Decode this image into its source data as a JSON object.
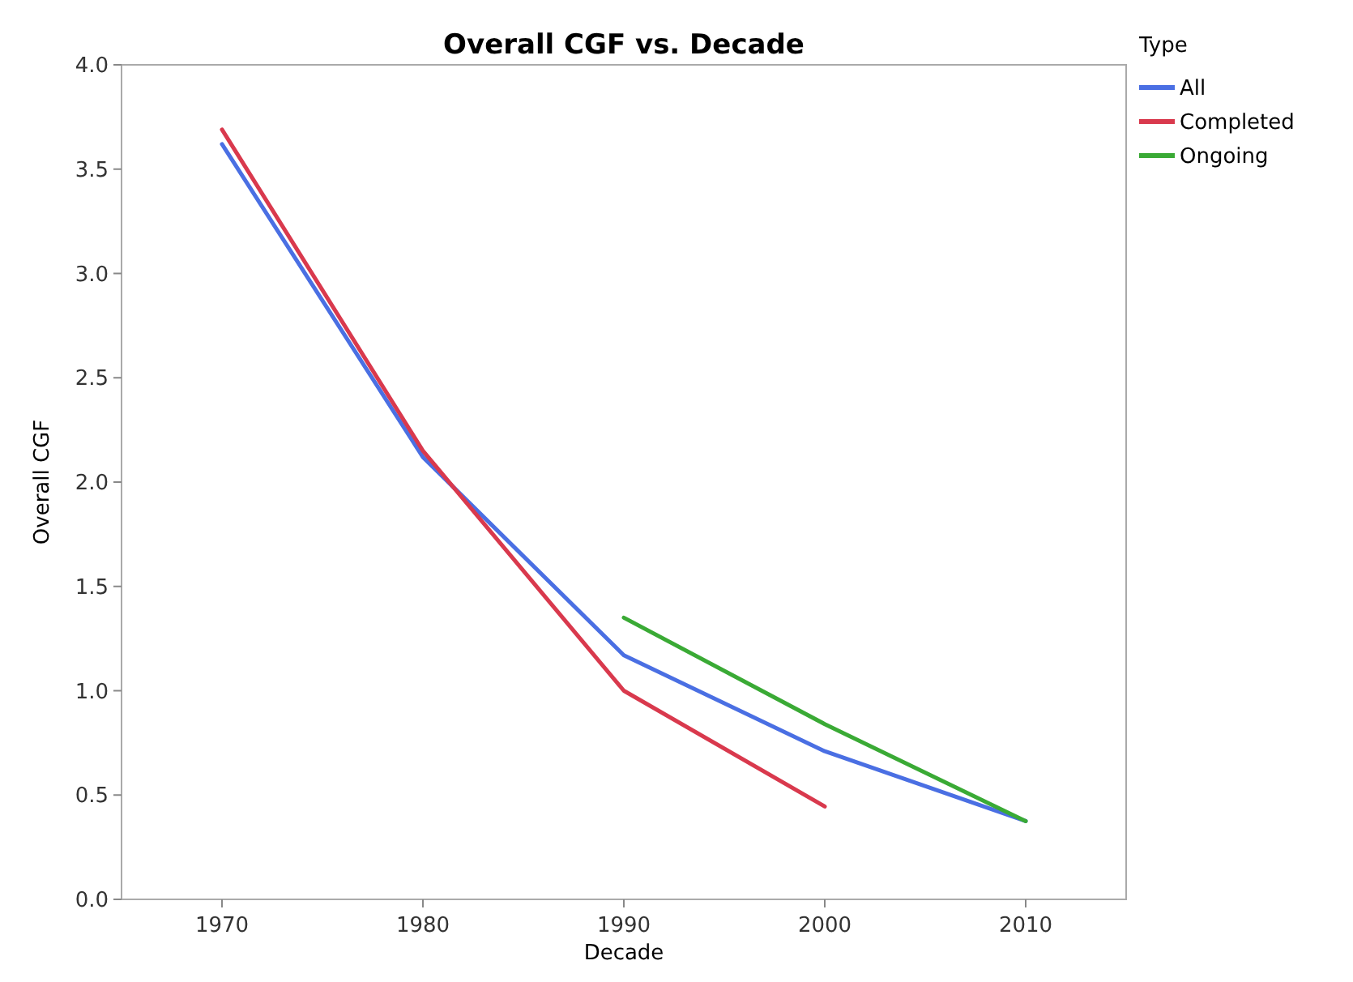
{
  "chart_data": {
    "type": "line",
    "title": "Overall CGF vs. Decade",
    "xlabel": "Decade",
    "ylabel": "Overall CGF",
    "legend_title": "Type",
    "x": [
      1970,
      1980,
      1990,
      2000,
      2010
    ],
    "series": [
      {
        "name": "All",
        "color": "#4a6fe3",
        "values": [
          3.62,
          2.12,
          1.17,
          0.71,
          0.375
        ]
      },
      {
        "name": "Completed",
        "color": "#d9394d",
        "values": [
          3.69,
          2.15,
          1.0,
          0.445,
          null
        ]
      },
      {
        "name": "Ongoing",
        "color": "#3aaa35",
        "values": [
          null,
          null,
          1.35,
          0.84,
          0.375
        ]
      }
    ],
    "xlim": [
      1965,
      2015
    ],
    "xticks": [
      1970,
      1980,
      1990,
      2000,
      2010
    ],
    "ylim": [
      0,
      4
    ],
    "yticks": [
      {
        "value": 0,
        "label": "0.0"
      },
      {
        "value": 0.5,
        "label": "0.5"
      },
      {
        "value": 1,
        "label": "1.0"
      },
      {
        "value": 1.5,
        "label": "1.5"
      },
      {
        "value": 2,
        "label": "2.0"
      },
      {
        "value": 2.5,
        "label": "2.5"
      },
      {
        "value": 3,
        "label": "3.0"
      },
      {
        "value": 3.5,
        "label": "3.5"
      },
      {
        "value": 4,
        "label": "4.0"
      }
    ],
    "grid": false,
    "legend": "top right",
    "line_style": "solid",
    "marker": "none"
  }
}
